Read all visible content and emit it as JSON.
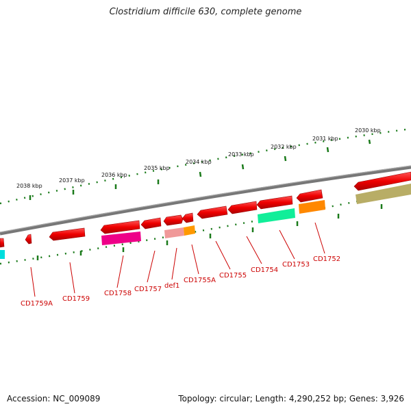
{
  "title": "Clostridium difficile 630, complete genome",
  "footer": {
    "accession": "Accession: NC_009089",
    "summary": "Topology: circular; Length: 4,290,252 bp; Genes: 3,926"
  },
  "scale_labels": [
    "2030 kbp",
    "2031 kbp",
    "2032 kbp",
    "2033 kbp",
    "2034 kbp",
    "2035 kbp",
    "2036 kbp",
    "2037 kbp",
    "2038 kbp"
  ],
  "colors": {
    "backbone": "#7a7a7a",
    "tick": "#1a7a1a",
    "gene": "#ee0000",
    "label": "#cc0000"
  },
  "genes": [
    {
      "name": "CD1752",
      "color": "#ee0000"
    },
    {
      "name": "CD1753",
      "color": "#ee0000"
    },
    {
      "name": "CD1754",
      "color": "#ee0000"
    },
    {
      "name": "CD1755",
      "color": "#ee0000"
    },
    {
      "name": "CD1755A",
      "color": "#ee0000"
    },
    {
      "name": "def1",
      "color": "#ee0000"
    },
    {
      "name": "CD1757",
      "color": "#ee0000"
    },
    {
      "name": "CD1758",
      "color": "#ee0000"
    },
    {
      "name": "CD1759",
      "color": "#ee0000"
    },
    {
      "name": "CD1759A",
      "color": "#ee0000"
    }
  ],
  "feature_colors": [
    "#aaa055",
    "#ff8800",
    "#00ee99",
    "#ee0088",
    "#ee8888",
    "#ff9900",
    "#00dddd"
  ]
}
